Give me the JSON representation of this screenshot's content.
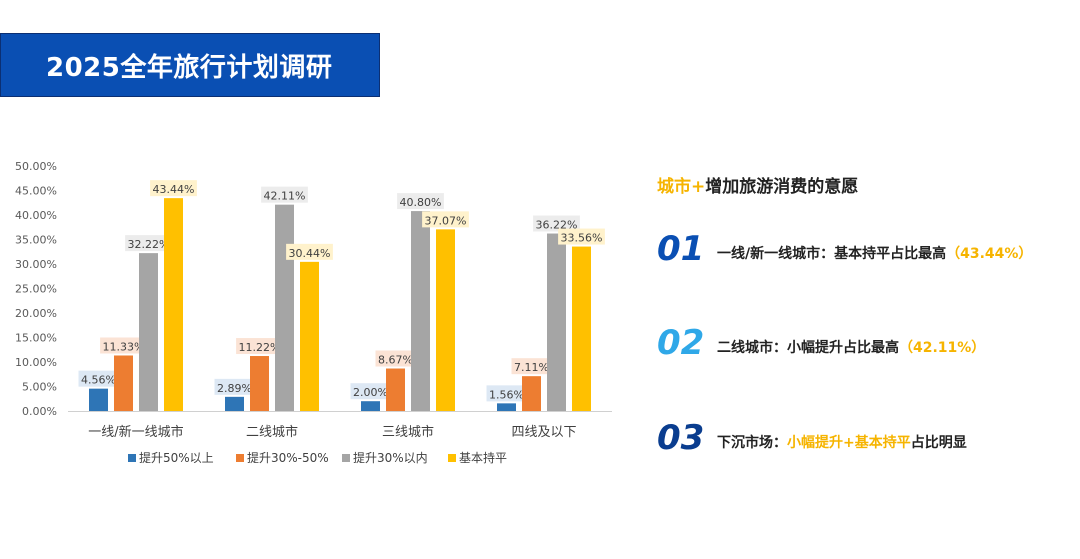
{
  "header": {
    "title": "2025全年旅行计划调研"
  },
  "chart_data": {
    "type": "bar",
    "categories": [
      "一线/新一线城市",
      "二线城市",
      "三线城市",
      "四线及以下"
    ],
    "series": [
      {
        "name": "提升50%以上",
        "values": [
          4.56,
          2.89,
          2.0,
          1.56
        ],
        "labels": [
          "4.56%",
          "2.89%",
          "2.00%",
          "1.56%"
        ]
      },
      {
        "name": "提升30%-50%",
        "values": [
          11.33,
          11.22,
          8.67,
          7.11
        ],
        "labels": [
          "11.33%",
          "11.22%",
          "8.67%",
          "7.11%"
        ]
      },
      {
        "name": "提升30%以内",
        "values": [
          32.22,
          42.11,
          40.8,
          36.22
        ],
        "labels": [
          "32.22%",
          "42.11%",
          "40.80%",
          "36.22%"
        ]
      },
      {
        "name": "基本持平",
        "values": [
          43.44,
          30.44,
          37.07,
          33.56
        ],
        "labels": [
          "43.44%",
          "30.44%",
          "37.07%",
          "33.56%"
        ]
      }
    ],
    "y_ticks": [
      "0.00%",
      "5.00%",
      "10.00%",
      "15.00%",
      "20.00%",
      "25.00%",
      "30.00%",
      "35.00%",
      "40.00%",
      "45.00%",
      "50.00%"
    ],
    "ylim": [
      0,
      50
    ],
    "legend_position": "bottom",
    "colors": [
      "#2e75b6",
      "#ed7d31",
      "#a5a5a5",
      "#ffc000"
    ],
    "label_bg": [
      "#dde8f4",
      "#fbe3d5",
      "#ececec",
      "#fff2cc"
    ]
  },
  "summary": {
    "subtitle_accent": "城市+",
    "subtitle_rest": "增加旅游消费的意愿",
    "points": [
      {
        "num": "01",
        "text": "一线/新一线城市：基本持平占比最高",
        "highlight": "（43.44%）",
        "num_color": "#0a4fb3"
      },
      {
        "num": "02",
        "text": "二线城市：小幅提升占比最高",
        "highlight": "（42.11%）",
        "num_color": "#2fa8e8"
      },
      {
        "num": "03",
        "text_prefix": "下沉市场：",
        "highlight": "小幅提升+基本持平",
        "text_suffix": "占比明显",
        "num_color": "#0a3d8f"
      }
    ]
  }
}
